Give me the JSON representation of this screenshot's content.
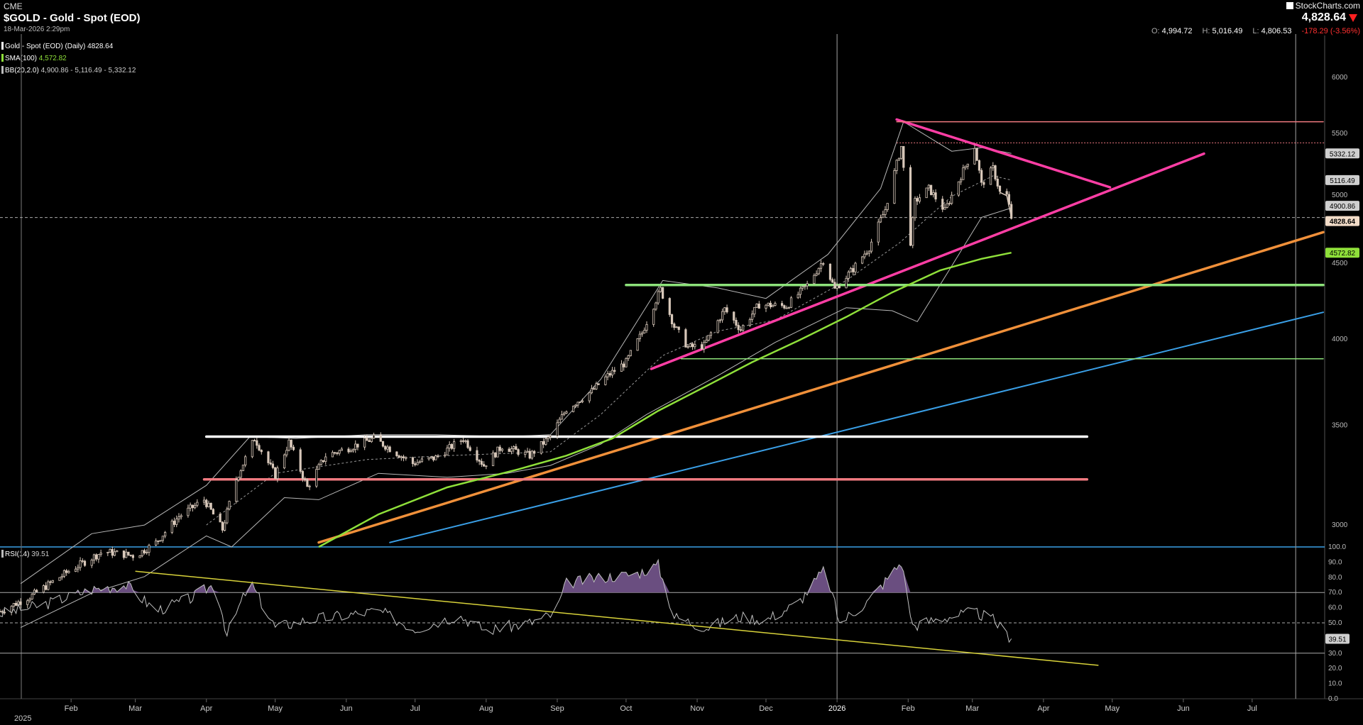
{
  "header": {
    "exchange": "CME",
    "title": "$GOLD - Gold - Spot (EOD)",
    "date": "18-Mar-2026 2:29pm",
    "logo": "StockCharts.com",
    "last": "4,828.64",
    "open_label": "O:",
    "open": "4,994.72",
    "high_label": "H:",
    "high": "5,016.49",
    "low_label": "L:",
    "low": "4,806.53",
    "change": "-178.29 (-3.56%)"
  },
  "legend": {
    "main": "Gold - Spot (EOD) (Daily) 4828.64",
    "sma_label": "SMA(100)",
    "sma_value": "4,572.82",
    "bb_label": "BB(20,2.0)",
    "bb_value": "4,900.86 - 5,116.49 - 5,332.12",
    "rsi_label": "RSI(14)",
    "rsi_value": "39.51"
  },
  "colors": {
    "price": "#d8c8ba",
    "sma": "#8fe03a",
    "bb": "#b8b8b8",
    "rsi": "#c0c0c0",
    "rsi_fill": "#6a4e80",
    "magenta": "#ff3ea5",
    "orange": "#f0903a",
    "blue": "#3a9fe6",
    "green_line": "#8de27a",
    "white_line": "#ffffff",
    "red_line": "#f07a80",
    "yellow": "#d8d23a",
    "last_tag": "#f2dcc8"
  },
  "chart_data": [
    {
      "type": "line",
      "log_scale": true,
      "ylim": [
        2900,
        6400
      ],
      "y_ticks": [
        "6000",
        "5500",
        "5000",
        "4500",
        "4000",
        "3500",
        "3000"
      ],
      "x_labels": [
        "Feb",
        "Mar",
        "Apr",
        "May",
        "Jun",
        "Jul",
        "Aug",
        "Sep",
        "Oct",
        "Nov",
        "Dec",
        "2026",
        "Feb",
        "Mar",
        "Apr",
        "May",
        "Jun",
        "Jul"
      ],
      "x_label_first": "2025",
      "x_label_dates": [
        "2025-02-01",
        "2025-03-01",
        "2025-04-01",
        "2025-05-01",
        "2025-06-01",
        "2025-07-01",
        "2025-08-01",
        "2025-09-01",
        "2025-10-01",
        "2025-11-01",
        "2025-12-01",
        "2026-01-01",
        "2026-02-01",
        "2026-03-01",
        "2026-04-01",
        "2026-05-01",
        "2026-06-01",
        "2026-07-01"
      ],
      "x_range": [
        "2025-01-01",
        "2026-08-01"
      ],
      "series": [
        {
          "name": "Gold - Spot (EOD)",
          "points": [
            [
              "2025-01-01",
              2625
            ],
            [
              "2025-01-15",
              2690
            ],
            [
              "2025-02-01",
              2800
            ],
            [
              "2025-02-15",
              2880
            ],
            [
              "2025-03-01",
              2860
            ],
            [
              "2025-03-10",
              2920
            ],
            [
              "2025-03-20",
              3040
            ],
            [
              "2025-03-31",
              3120
            ],
            [
              "2025-04-08",
              2980
            ],
            [
              "2025-04-14",
              3220
            ],
            [
              "2025-04-22",
              3430
            ],
            [
              "2025-05-01",
              3240
            ],
            [
              "2025-05-07",
              3410
            ],
            [
              "2025-05-15",
              3180
            ],
            [
              "2025-05-23",
              3340
            ],
            [
              "2025-06-02",
              3380
            ],
            [
              "2025-06-13",
              3430
            ],
            [
              "2025-06-30",
              3300
            ],
            [
              "2025-07-10",
              3330
            ],
            [
              "2025-07-22",
              3430
            ],
            [
              "2025-07-31",
              3290
            ],
            [
              "2025-08-08",
              3390
            ],
            [
              "2025-08-20",
              3340
            ],
            [
              "2025-08-29",
              3440
            ],
            [
              "2025-09-05",
              3590
            ],
            [
              "2025-09-16",
              3690
            ],
            [
              "2025-09-23",
              3780
            ],
            [
              "2025-10-01",
              3860
            ],
            [
              "2025-10-08",
              4040
            ],
            [
              "2025-10-16",
              4320
            ],
            [
              "2025-10-22",
              4080
            ],
            [
              "2025-10-28",
              3950
            ],
            [
              "2025-11-04",
              3960
            ],
            [
              "2025-11-13",
              4190
            ],
            [
              "2025-11-20",
              4060
            ],
            [
              "2025-11-28",
              4220
            ],
            [
              "2025-12-10",
              4210
            ],
            [
              "2025-12-19",
              4350
            ],
            [
              "2025-12-26",
              4520
            ],
            [
              "2025-12-31",
              4320
            ],
            [
              "2026-01-08",
              4460
            ],
            [
              "2026-01-15",
              4610
            ],
            [
              "2026-01-22",
              4890
            ],
            [
              "2026-01-29",
              5390
            ],
            [
              "2026-02-02",
              4650
            ],
            [
              "2026-02-04",
              4950
            ],
            [
              "2026-02-10",
              5050
            ],
            [
              "2026-02-17",
              4880
            ],
            [
              "2026-02-24",
              5150
            ],
            [
              "2026-03-02",
              5390
            ],
            [
              "2026-03-05",
              5080
            ],
            [
              "2026-03-10",
              5210
            ],
            [
              "2026-03-13",
              5020
            ],
            [
              "2026-03-16",
              4995
            ],
            [
              "2026-03-18",
              4828.64
            ]
          ]
        },
        {
          "name": "SMA(100)",
          "points": [
            [
              "2025-05-20",
              2900
            ],
            [
              "2025-06-15",
              3050
            ],
            [
              "2025-07-15",
              3180
            ],
            [
              "2025-08-15",
              3270
            ],
            [
              "2025-09-05",
              3340
            ],
            [
              "2025-09-25",
              3430
            ],
            [
              "2025-10-15",
              3580
            ],
            [
              "2025-11-05",
              3720
            ],
            [
              "2025-11-25",
              3860
            ],
            [
              "2025-12-15",
              3990
            ],
            [
              "2026-01-05",
              4140
            ],
            [
              "2026-01-25",
              4300
            ],
            [
              "2026-02-15",
              4450
            ],
            [
              "2026-03-05",
              4530
            ],
            [
              "2026-03-18",
              4572.82
            ]
          ]
        },
        {
          "name": "BB upper",
          "points": [
            [
              "2025-01-10",
              2740
            ],
            [
              "2025-02-10",
              2960
            ],
            [
              "2025-03-05",
              3000
            ],
            [
              "2025-04-01",
              3190
            ],
            [
              "2025-04-20",
              3440
            ],
            [
              "2025-05-10",
              3430
            ],
            [
              "2025-06-10",
              3450
            ],
            [
              "2025-07-10",
              3450
            ],
            [
              "2025-08-10",
              3440
            ],
            [
              "2025-08-29",
              3450
            ],
            [
              "2025-09-20",
              3760
            ],
            [
              "2025-10-17",
              4380
            ],
            [
              "2025-11-10",
              4330
            ],
            [
              "2025-12-01",
              4260
            ],
            [
              "2025-12-28",
              4560
            ],
            [
              "2026-01-20",
              5050
            ],
            [
              "2026-01-30",
              5600
            ],
            [
              "2026-02-20",
              5350
            ],
            [
              "2026-03-05",
              5380
            ],
            [
              "2026-03-18",
              5332.12
            ]
          ]
        },
        {
          "name": "BB lower",
          "points": [
            [
              "2025-01-10",
              2560
            ],
            [
              "2025-02-10",
              2700
            ],
            [
              "2025-03-05",
              2770
            ],
            [
              "2025-04-01",
              2950
            ],
            [
              "2025-04-12",
              2900
            ],
            [
              "2025-05-05",
              3130
            ],
            [
              "2025-05-20",
              3120
            ],
            [
              "2025-06-15",
              3250
            ],
            [
              "2025-07-15",
              3230
            ],
            [
              "2025-08-10",
              3250
            ],
            [
              "2025-08-29",
              3290
            ],
            [
              "2025-09-20",
              3400
            ],
            [
              "2025-10-10",
              3560
            ],
            [
              "2025-11-10",
              3780
            ],
            [
              "2025-12-05",
              3980
            ],
            [
              "2026-01-05",
              4200
            ],
            [
              "2026-01-25",
              4180
            ],
            [
              "2026-02-05",
              4110
            ],
            [
              "2026-02-20",
              4480
            ],
            [
              "2026-03-05",
              4830
            ],
            [
              "2026-03-18",
              4900.86
            ]
          ]
        },
        {
          "name": "BB middle",
          "points": [
            [
              "2025-04-01",
              3000
            ],
            [
              "2025-05-01",
              3250
            ],
            [
              "2025-06-10",
              3320
            ],
            [
              "2025-07-15",
              3340
            ],
            [
              "2025-08-29",
              3360
            ],
            [
              "2025-09-20",
              3560
            ],
            [
              "2025-10-17",
              3900
            ],
            [
              "2025-11-10",
              4050
            ],
            [
              "2025-12-05",
              4120
            ],
            [
              "2026-01-05",
              4380
            ],
            [
              "2026-01-28",
              4640
            ],
            [
              "2026-02-20",
              4990
            ],
            [
              "2026-03-10",
              5150
            ],
            [
              "2026-03-18",
              5116.49
            ]
          ]
        }
      ],
      "price_labels": [
        "5332.12",
        "5116.49",
        "4900.86",
        "4828.64",
        "4572.82"
      ],
      "drawn_lines": [
        {
          "name": "magenta-resistance-line",
          "color": "magenta",
          "points": [
            [
              "2026-01-27",
              5620
            ],
            [
              "2026-04-30",
              5060
            ]
          ]
        },
        {
          "name": "magenta-support-line",
          "color": "magenta",
          "points": [
            [
              "2025-10-12",
              3820
            ],
            [
              "2026-06-10",
              5330
            ]
          ]
        },
        {
          "name": "orange-trendline",
          "color": "orange",
          "points": [
            [
              "2025-05-20",
              2920
            ],
            [
              "2026-08-01",
              4720
            ]
          ]
        },
        {
          "name": "blue-trendline",
          "color": "blue",
          "points": [
            [
              "2025-06-20",
              2920
            ],
            [
              "2026-08-01",
              4170
            ]
          ]
        },
        {
          "name": "green-level-4350",
          "color": "green_line",
          "points": [
            [
              "2025-10-01",
              4350
            ],
            [
              "2026-08-01",
              4350
            ]
          ]
        },
        {
          "name": "green-level-3880",
          "color": "green_line",
          "points": [
            [
              "2025-10-25",
              3880
            ],
            [
              "2026-08-01",
              3880
            ]
          ]
        },
        {
          "name": "white-level-3440",
          "color": "white_line",
          "points": [
            [
              "2025-04-01",
              3440
            ],
            [
              "2026-04-20",
              3440
            ]
          ]
        },
        {
          "name": "pink-level-3220",
          "color": "red_line",
          "points": [
            [
              "2025-03-31",
              3220
            ],
            [
              "2026-04-20",
              3220
            ]
          ]
        },
        {
          "name": "top-level-5600",
          "color": "red_line",
          "points": [
            [
              "2026-01-27",
              5600
            ],
            [
              "2026-08-01",
              5600
            ]
          ]
        }
      ]
    },
    {
      "type": "line",
      "ylim": [
        0,
        100
      ],
      "y_ticks": [
        "100.0",
        "90.0",
        "80.0",
        "70.0",
        "60.0",
        "50.0",
        "40.0",
        "30.0",
        "20.0",
        "10.0",
        "0.0"
      ],
      "overbought": 70,
      "midline": 50,
      "oversold": 30,
      "series": [
        {
          "name": "RSI(14)",
          "points": [
            [
              "2025-01-01",
              56
            ],
            [
              "2025-01-20",
              62
            ],
            [
              "2025-02-10",
              72
            ],
            [
              "2025-02-25",
              75
            ],
            [
              "2025-03-10",
              58
            ],
            [
              "2025-03-25",
              66
            ],
            [
              "2025-04-05",
              76
            ],
            [
              "2025-04-10",
              42
            ],
            [
              "2025-04-20",
              77
            ],
            [
              "2025-05-01",
              47
            ],
            [
              "2025-05-15",
              52
            ],
            [
              "2025-06-01",
              55
            ],
            [
              "2025-06-15",
              58
            ],
            [
              "2025-07-01",
              46
            ],
            [
              "2025-07-20",
              55
            ],
            [
              "2025-08-01",
              45
            ],
            [
              "2025-08-20",
              50
            ],
            [
              "2025-08-31",
              56
            ],
            [
              "2025-09-05",
              76
            ],
            [
              "2025-09-20",
              80
            ],
            [
              "2025-10-05",
              82
            ],
            [
              "2025-10-15",
              88
            ],
            [
              "2025-10-22",
              54
            ],
            [
              "2025-11-05",
              47
            ],
            [
              "2025-11-20",
              54
            ],
            [
              "2025-12-01",
              52
            ],
            [
              "2025-12-15",
              63
            ],
            [
              "2025-12-27",
              86
            ],
            [
              "2026-01-02",
              50
            ],
            [
              "2026-01-15",
              65
            ],
            [
              "2026-01-29",
              90
            ],
            [
              "2026-02-03",
              48
            ],
            [
              "2026-02-15",
              53
            ],
            [
              "2026-03-02",
              57
            ],
            [
              "2026-03-10",
              52
            ],
            [
              "2026-03-18",
              39.51
            ]
          ]
        }
      ],
      "drawn_lines": [
        {
          "name": "rsi-yellow-trendline",
          "color": "yellow",
          "points": [
            [
              "2025-03-01",
              84
            ],
            [
              "2026-04-25",
              22
            ]
          ]
        }
      ]
    }
  ]
}
